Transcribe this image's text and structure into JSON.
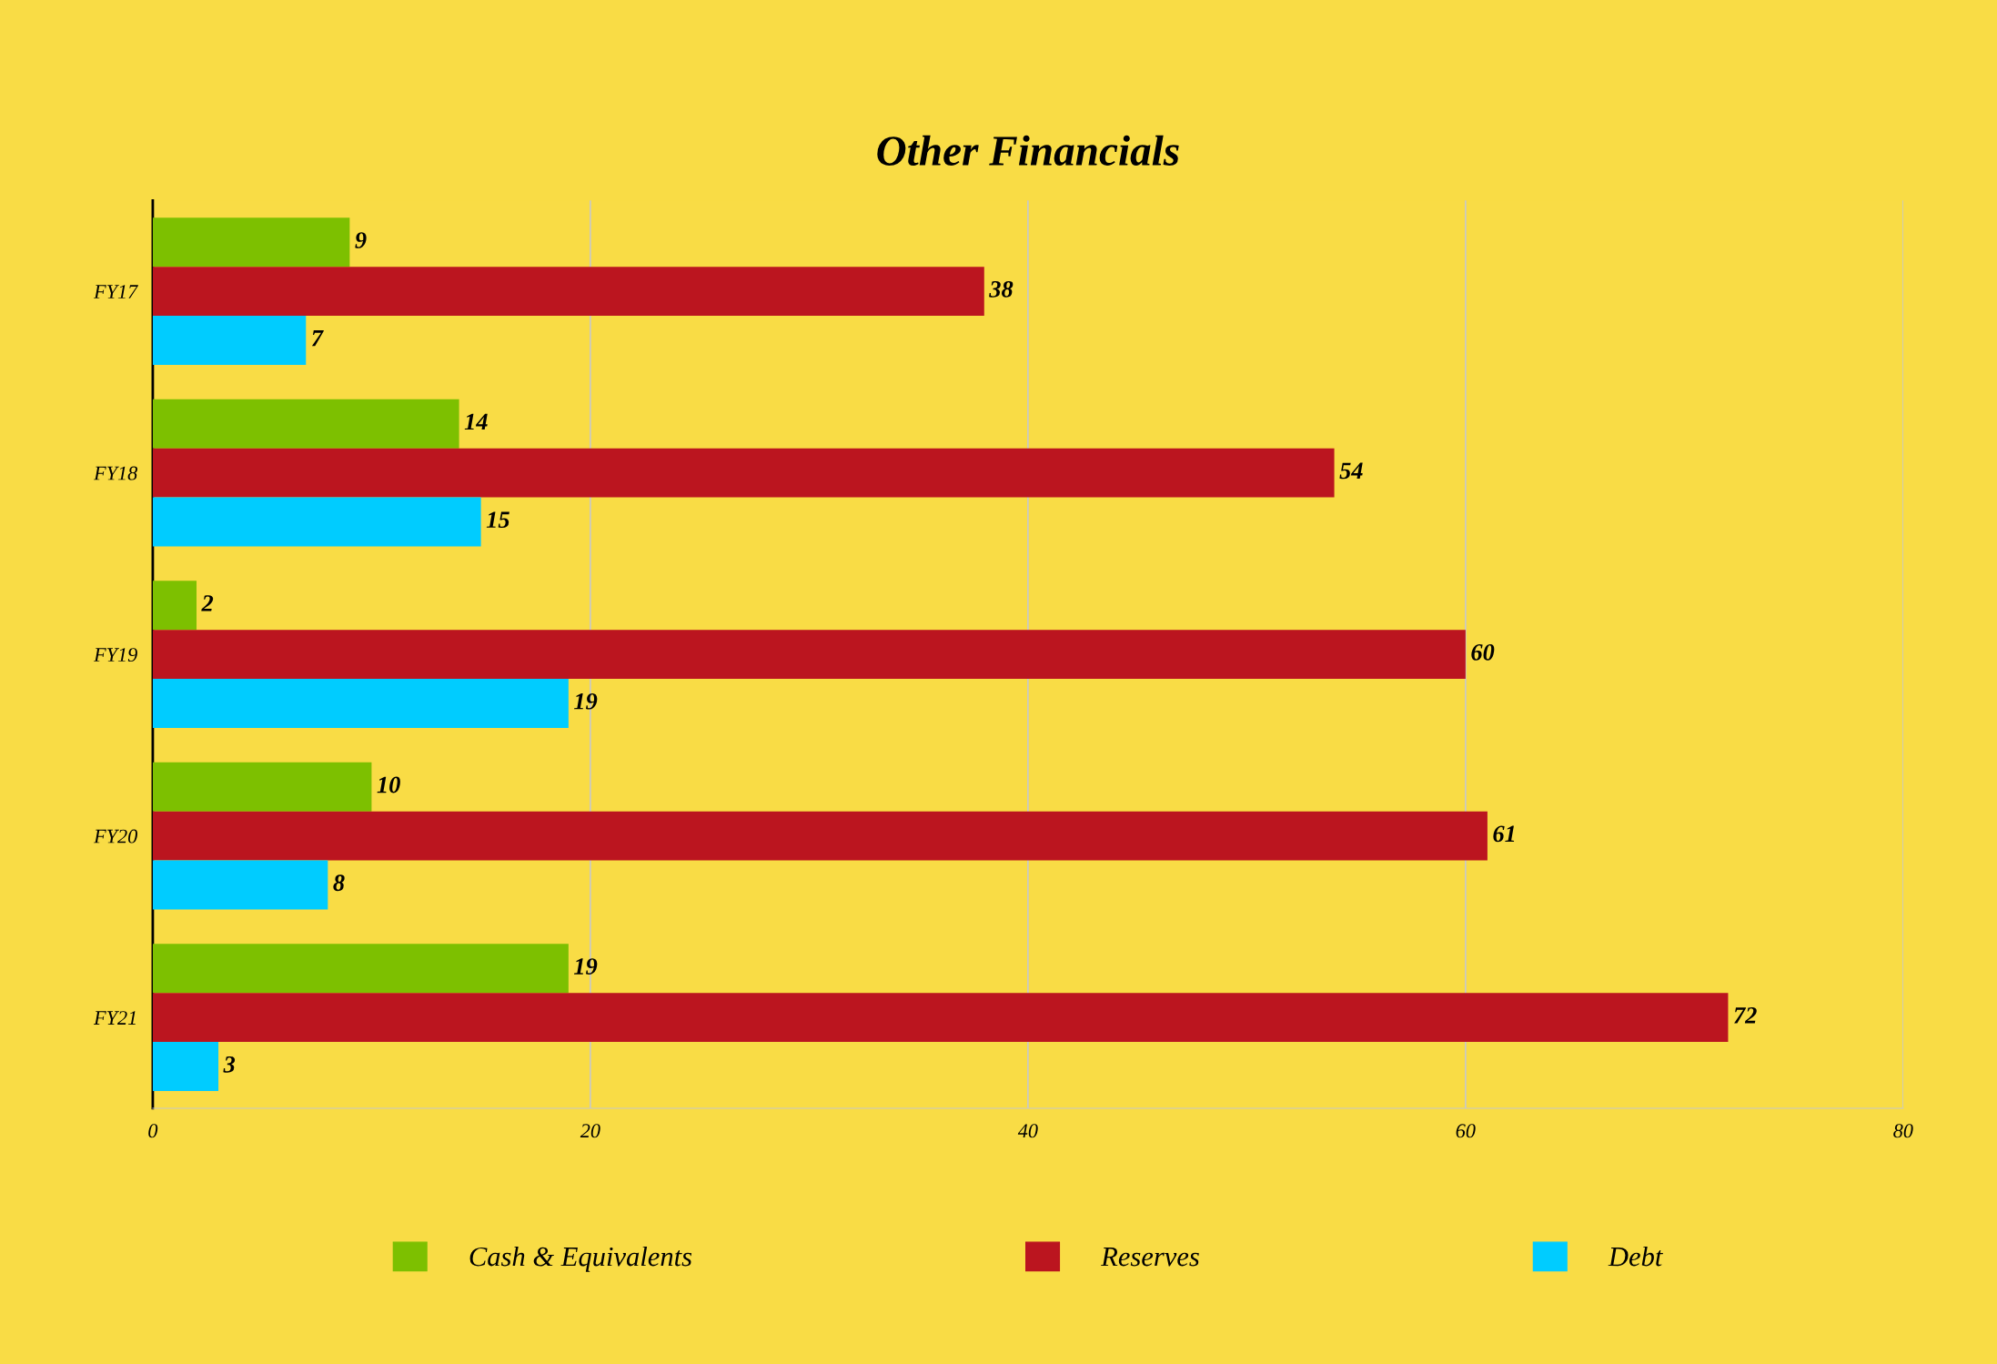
{
  "chart_data": {
    "type": "bar",
    "orientation": "horizontal",
    "title": "Other Financials",
    "categories": [
      "FY17",
      "FY18",
      "FY19",
      "FY20",
      "FY21"
    ],
    "series": [
      {
        "name": "Cash & Equivalents",
        "color": "#7dc000",
        "values": [
          9,
          14,
          2,
          10,
          19
        ]
      },
      {
        "name": "Reserves",
        "color": "#bb151f",
        "values": [
          38,
          54,
          60,
          61,
          72
        ]
      },
      {
        "name": "Debt",
        "color": "#00ccff",
        "values": [
          7,
          15,
          19,
          8,
          3
        ]
      }
    ],
    "xlim": [
      0,
      80
    ],
    "xticks": [
      0,
      20,
      40,
      60,
      80
    ],
    "grid": "x",
    "legend": "bottom",
    "data_labels": true
  }
}
